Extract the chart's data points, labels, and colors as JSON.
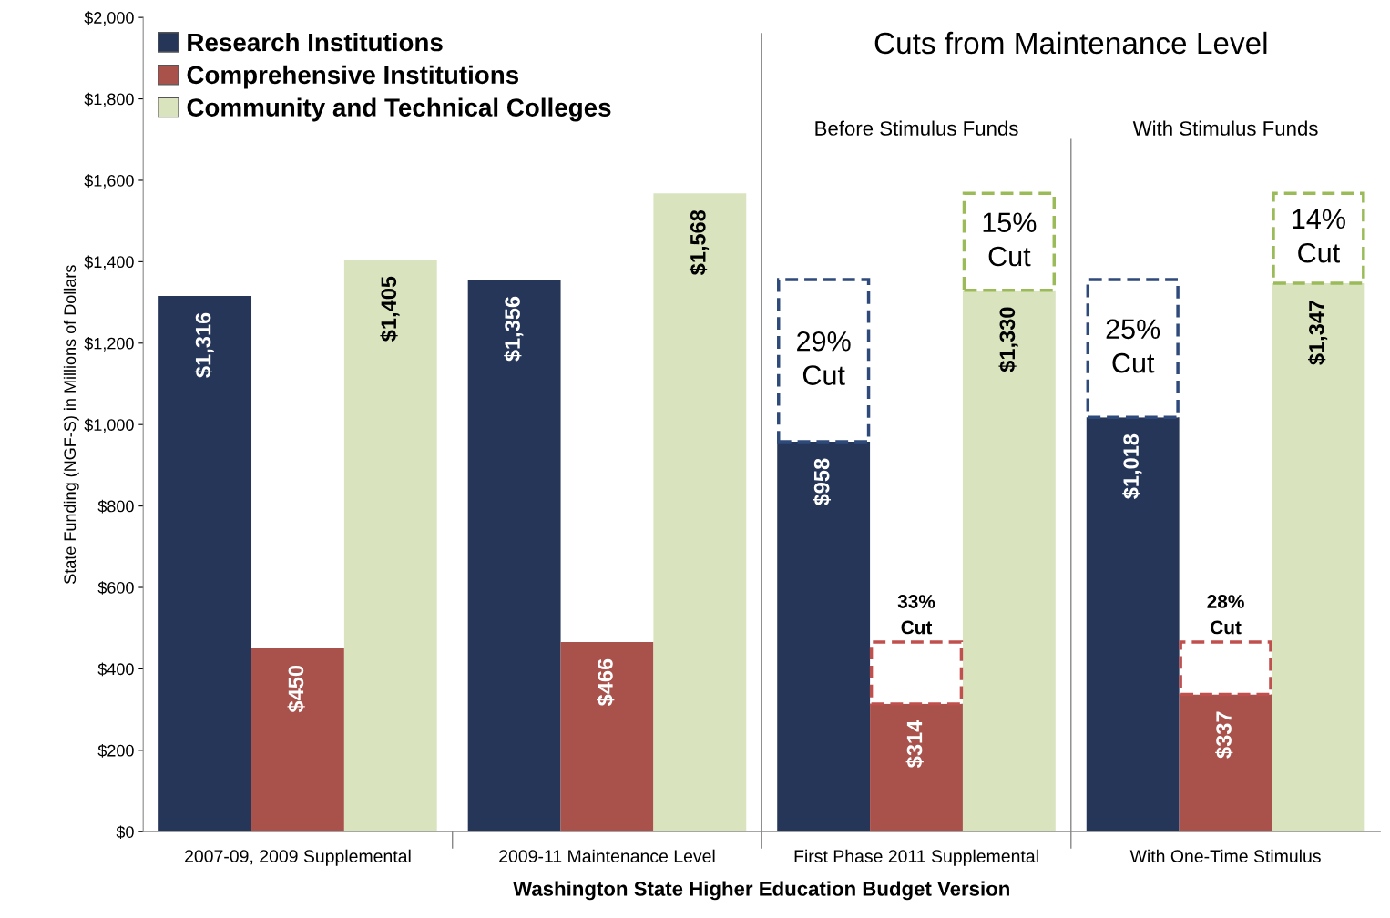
{
  "chart_data": {
    "type": "bar",
    "xlabel": "Washington State Higher Education Budget Version",
    "ylabel": "State Funding (NGF-S) in Millions of Dollars",
    "categories": [
      "2007-09, 2009 Supplemental",
      "2009-11 Maintenance Level",
      "First Phase 2011 Supplemental",
      "With One-Time Stimulus"
    ],
    "ylim": [
      0,
      2000
    ],
    "yticks": [
      {
        "value": 0,
        "label": "$0"
      },
      {
        "value": 200,
        "label": "$200"
      },
      {
        "value": 400,
        "label": "$400"
      },
      {
        "value": 600,
        "label": "$600"
      },
      {
        "value": 800,
        "label": "$800"
      },
      {
        "value": 1000,
        "label": "$1,000"
      },
      {
        "value": 1200,
        "label": "$1,200"
      },
      {
        "value": 1400,
        "label": "$1,400"
      },
      {
        "value": 1600,
        "label": "$1,600"
      },
      {
        "value": 1800,
        "label": "$1,800"
      },
      {
        "value": 2000,
        "label": "$2,000"
      }
    ],
    "series": [
      {
        "name": "Research Institutions",
        "color": "#253659",
        "values": [
          1316,
          1356,
          958,
          1018
        ],
        "value_labels": [
          "$1,316",
          "$1,356",
          "$958",
          "$1,018"
        ]
      },
      {
        "name": "Comprehensive Institutions",
        "color": "#a9514b",
        "values": [
          450,
          466,
          314,
          337
        ],
        "value_labels": [
          "$450",
          "$466",
          "$314",
          "$337"
        ]
      },
      {
        "name": "Community and Technical Colleges",
        "color": "#d9e4bf",
        "values": [
          1405,
          1568,
          1330,
          1347
        ],
        "value_labels": [
          "$1,405",
          "$1,568",
          "$1,330",
          "$1,347"
        ]
      },
      {
        "color": "#2e4a7a",
        "line_style": "dashed",
        "base": [
          null,
          null,
          958,
          1018
        ],
        "values": [
          null,
          null,
          398,
          338
        ]
      },
      {
        "color": "#c0504d",
        "line_style": "dashed",
        "base": [
          null,
          null,
          314,
          337
        ],
        "values": [
          null,
          null,
          152,
          129
        ]
      },
      {
        "color": "#9bbb59",
        "line_style": "dashed",
        "base": [
          null,
          null,
          1330,
          1347
        ],
        "values": [
          null,
          null,
          238,
          221
        ]
      }
    ],
    "annotations": [
      "Cuts from Maintenance Level",
      "Before Stimulus Funds",
      "With Stimulus Funds",
      "29%\nCut",
      "25%\nCut",
      "33%\nCut",
      "28%\nCut",
      "15%\nCut",
      "14%\nCut"
    ],
    "legend": "top left",
    "grid": false
  }
}
